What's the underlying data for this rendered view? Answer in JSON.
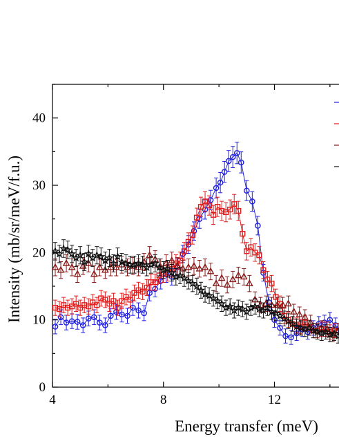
{
  "chart_data": {
    "type": "scatter",
    "xlabel": "Energy transfer (meV)",
    "ylabel": "Intensity (mb/sr/meV/f.u.)",
    "xlim": [
      4,
      14.7
    ],
    "ylim": [
      0,
      45
    ],
    "xticks": [
      "4",
      "8",
      "12"
    ],
    "yticks": [
      "0",
      "10",
      "20",
      "30",
      "40"
    ],
    "legend_position": "top-right, clipped at the right edge",
    "series": [
      {
        "color": "#1f1fe0",
        "marker": "circle",
        "connected": true,
        "x": [
          4.1,
          4.3,
          4.5,
          4.7,
          4.9,
          5.1,
          5.3,
          5.5,
          5.7,
          5.9,
          6.1,
          6.3,
          6.5,
          6.7,
          6.9,
          7.1,
          7.3,
          7.5,
          7.7,
          7.9,
          8.1,
          8.3,
          8.5,
          8.7,
          8.9,
          9.1,
          9.3,
          9.5,
          9.7,
          9.9,
          10.05,
          10.2,
          10.35,
          10.5,
          10.65,
          10.8,
          11.0,
          11.2,
          11.4,
          11.6,
          11.8,
          12.0,
          12.2,
          12.4,
          12.6,
          12.8,
          13.0,
          13.2,
          13.4,
          13.6,
          13.8,
          14.0,
          14.2,
          14.4,
          14.6
        ],
        "y": [
          9,
          10.4,
          9.6,
          9.8,
          9.7,
          9.2,
          10.2,
          10.4,
          9.6,
          9.2,
          10.6,
          11.2,
          10.8,
          10.6,
          11.8,
          11.4,
          11.0,
          14.0,
          14.6,
          15.8,
          16.8,
          16.4,
          17.8,
          19.8,
          21.2,
          23.2,
          25.0,
          26.4,
          27.8,
          29.6,
          30.4,
          32.0,
          33.6,
          34.2,
          34.8,
          33.4,
          29.2,
          27.6,
          24.0,
          17.0,
          12.6,
          10.0,
          8.8,
          7.6,
          7.4,
          8.0,
          8.6,
          8.2,
          8.8,
          9.4,
          9.6,
          10.0,
          9.2,
          8.4,
          8.0
        ]
      },
      {
        "color": "#e01b1b",
        "marker": "square",
        "connected": true,
        "x": [
          4.1,
          4.25,
          4.4,
          4.55,
          4.7,
          4.85,
          5.0,
          5.15,
          5.3,
          5.45,
          5.6,
          5.75,
          5.9,
          6.05,
          6.2,
          6.35,
          6.5,
          6.65,
          6.8,
          6.95,
          7.1,
          7.25,
          7.4,
          7.55,
          7.7,
          7.85,
          8.0,
          8.15,
          8.3,
          8.45,
          8.6,
          8.75,
          8.9,
          9.05,
          9.2,
          9.35,
          9.5,
          9.65,
          9.8,
          9.95,
          10.1,
          10.25,
          10.4,
          10.55,
          10.7,
          10.85,
          11.0,
          11.15,
          11.3,
          11.45,
          11.6,
          11.75,
          11.9,
          12.05,
          12.2,
          12.35,
          12.5,
          12.65,
          12.8,
          12.95,
          13.1,
          13.25,
          13.4,
          13.55,
          13.7,
          13.85,
          14.0,
          14.15,
          14.3,
          14.45,
          14.6
        ],
        "y": [
          11.8,
          11.6,
          12.2,
          11.8,
          12.0,
          12.4,
          11.8,
          12.2,
          12.0,
          12.6,
          12.2,
          13.2,
          13.0,
          12.4,
          12.8,
          11.8,
          12.8,
          13.4,
          13.0,
          14.0,
          14.4,
          14.2,
          14.8,
          15.6,
          15.6,
          16.6,
          16.8,
          17.0,
          17.6,
          18.4,
          18.8,
          20.2,
          21.6,
          22.6,
          25.2,
          26.8,
          27.6,
          27.0,
          25.6,
          26.8,
          26.2,
          26.0,
          26.4,
          27.2,
          26.2,
          22.8,
          20.2,
          20.8,
          20.0,
          19.6,
          17.4,
          16.0,
          15.4,
          13.4,
          12.4,
          10.6,
          10.0,
          9.4,
          9.2,
          9.0,
          9.6,
          8.8,
          8.4,
          8.4,
          8.6,
          8.6,
          8.2,
          8.4,
          8.4,
          9.6,
          9.8
        ]
      },
      {
        "color": "#8b1a1a",
        "marker": "triangle",
        "connected": false,
        "x": [
          4.1,
          4.3,
          4.5,
          4.7,
          4.9,
          5.1,
          5.3,
          5.5,
          5.7,
          5.9,
          6.1,
          6.3,
          6.5,
          6.7,
          6.9,
          7.1,
          7.3,
          7.5,
          7.7,
          7.9,
          8.1,
          8.3,
          8.5,
          8.7,
          8.9,
          9.1,
          9.3,
          9.5,
          9.7,
          9.9,
          10.1,
          10.3,
          10.5,
          10.7,
          10.9,
          11.1,
          11.3,
          11.5,
          11.7,
          11.9,
          12.1,
          12.3,
          12.5,
          12.7,
          12.9,
          13.1,
          13.3,
          13.5,
          13.7,
          13.9,
          14.1,
          14.3,
          14.5
        ],
        "y": [
          17.8,
          17.4,
          18.4,
          17.8,
          16.8,
          18.0,
          18.4,
          16.8,
          17.8,
          17.4,
          17.8,
          17.8,
          18.2,
          17.8,
          18.0,
          17.8,
          18.6,
          19.6,
          19.0,
          17.8,
          18.4,
          18.8,
          18.0,
          17.6,
          17.8,
          18.0,
          17.6,
          17.8,
          17.2,
          15.4,
          16.2,
          15.2,
          16.0,
          16.6,
          16.4,
          15.4,
          13.0,
          12.2,
          12.4,
          12.2,
          12.2,
          12.2,
          12.4,
          11.2,
          10.8,
          10.4,
          9.6,
          8.4,
          8.8,
          8.6,
          7.8,
          8.4,
          8.2
        ]
      },
      {
        "color": "#111111",
        "marker": "star",
        "connected": false,
        "x": [
          4.1,
          4.25,
          4.4,
          4.55,
          4.7,
          4.85,
          5.0,
          5.15,
          5.3,
          5.45,
          5.6,
          5.75,
          5.9,
          6.05,
          6.2,
          6.35,
          6.5,
          6.65,
          6.8,
          6.95,
          7.1,
          7.25,
          7.4,
          7.55,
          7.7,
          7.85,
          8.0,
          8.15,
          8.3,
          8.45,
          8.6,
          8.75,
          8.9,
          9.05,
          9.2,
          9.35,
          9.5,
          9.65,
          9.8,
          9.95,
          10.1,
          10.25,
          10.4,
          10.55,
          10.7,
          10.85,
          11.0,
          11.15,
          11.3,
          11.45,
          11.6,
          11.75,
          11.9,
          12.05,
          12.2,
          12.35,
          12.5,
          12.65,
          12.8,
          12.95,
          13.1,
          13.25,
          13.4,
          13.55,
          13.7,
          13.85,
          14.0,
          14.15,
          14.3,
          14.45,
          14.6
        ],
        "y": [
          20.2,
          19.8,
          20.6,
          20.4,
          19.8,
          19.2,
          19.6,
          18.6,
          19.8,
          19.2,
          19.6,
          19.4,
          18.8,
          19.2,
          18.4,
          19.4,
          18.6,
          18.4,
          18.2,
          18.2,
          18.4,
          18.2,
          17.8,
          18.2,
          18.4,
          17.8,
          17.4,
          17.6,
          17.0,
          16.4,
          16.6,
          16.2,
          15.8,
          15.4,
          15.0,
          14.4,
          13.8,
          13.6,
          13.2,
          12.8,
          12.4,
          11.8,
          12.0,
          11.4,
          11.8,
          11.6,
          11.2,
          11.8,
          12.0,
          11.6,
          11.4,
          11.8,
          11.2,
          11.0,
          10.6,
          10.2,
          9.8,
          9.4,
          9.0,
          8.8,
          8.6,
          8.8,
          8.4,
          8.2,
          8.0,
          8.2,
          7.8,
          8.0,
          7.6,
          7.8,
          8.0
        ]
      }
    ]
  }
}
